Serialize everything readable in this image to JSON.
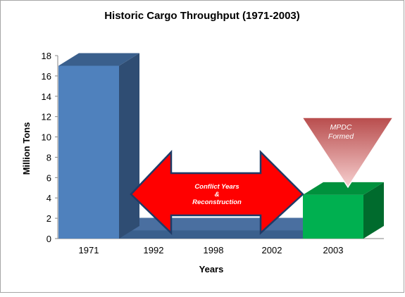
{
  "colors": {
    "primary_bar": "#4f81bd",
    "primary_bar_top": "#3a5f8c",
    "primary_bar_side": "#2f4d73",
    "floor_front": "#3a5f8c",
    "floor_top": "#4a6fa0",
    "highlight_bar": "#00b050",
    "highlight_bar_top": "#00913d",
    "highlight_bar_side": "#006b2d",
    "arrow_fill": "#ff0000",
    "arrow_stroke": "#1f3a66",
    "triangle_top": "#b84c4c",
    "triangle_bottom": "#f7d0d0",
    "axis_line": "#868686",
    "text": "#000000",
    "frame": "#a6a6a6"
  },
  "chart_data": {
    "type": "bar",
    "title": "Historic Cargo Throughput (1971-2003)",
    "xlabel": "Years",
    "ylabel": "Million Tons",
    "ylim": [
      0,
      18
    ],
    "yticks": [
      0,
      2,
      4,
      6,
      8,
      10,
      12,
      14,
      16,
      18
    ],
    "categories": [
      "1971",
      "1992",
      "1998",
      "2002",
      "2003"
    ],
    "values": [
      17,
      0.8,
      0.8,
      0.8,
      4.3
    ],
    "legend": "none",
    "grid": false,
    "annotations": {
      "conflict": {
        "line1": "Conflict Years",
        "line2": "&",
        "line3": "Reconstruction",
        "from_category": "1992",
        "to_category": "2002"
      },
      "mpdc": {
        "line1": "MPDC",
        "line2": "Formed",
        "category": "2003"
      }
    }
  }
}
